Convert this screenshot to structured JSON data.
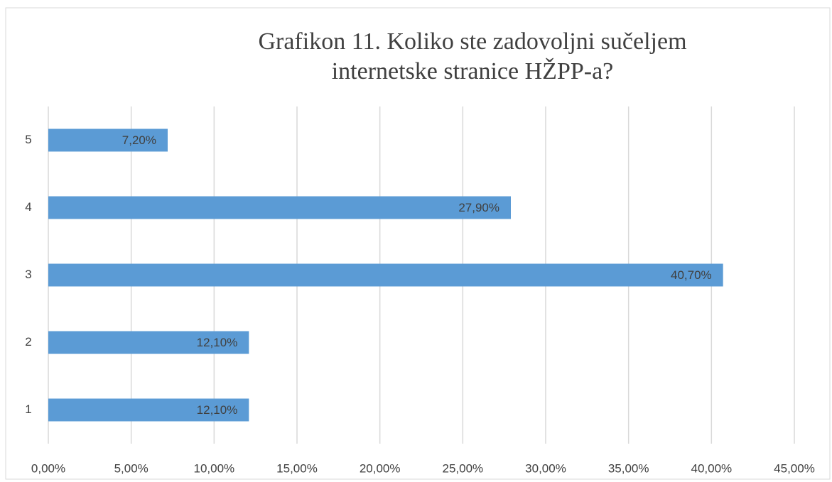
{
  "chart_data": {
    "type": "bar",
    "orientation": "horizontal",
    "title": "Grafikon 11. Koliko ste zadovoljni sučeljem internetske stranice HŽPP-a?",
    "categories": [
      "1",
      "2",
      "3",
      "4",
      "5"
    ],
    "values": [
      12.1,
      12.1,
      40.7,
      27.9,
      7.2
    ],
    "value_labels": [
      "12,10%",
      "12,10%",
      "40,70%",
      "27,90%",
      "7,20%"
    ],
    "color": "#5b9bd5",
    "xlim": [
      0,
      45
    ],
    "xticks": [
      {
        "value": 0,
        "label": "0,00%"
      },
      {
        "value": 5,
        "label": "5,00%"
      },
      {
        "value": 10,
        "label": "10,00%"
      },
      {
        "value": 15,
        "label": "15,00%"
      },
      {
        "value": 20,
        "label": "20,00%"
      },
      {
        "value": 25,
        "label": "25,00%"
      },
      {
        "value": 30,
        "label": "30,00%"
      },
      {
        "value": 35,
        "label": "35,00%"
      },
      {
        "value": 40,
        "label": "40,00%"
      },
      {
        "value": 45,
        "label": "45,00%"
      }
    ],
    "grid": true
  }
}
